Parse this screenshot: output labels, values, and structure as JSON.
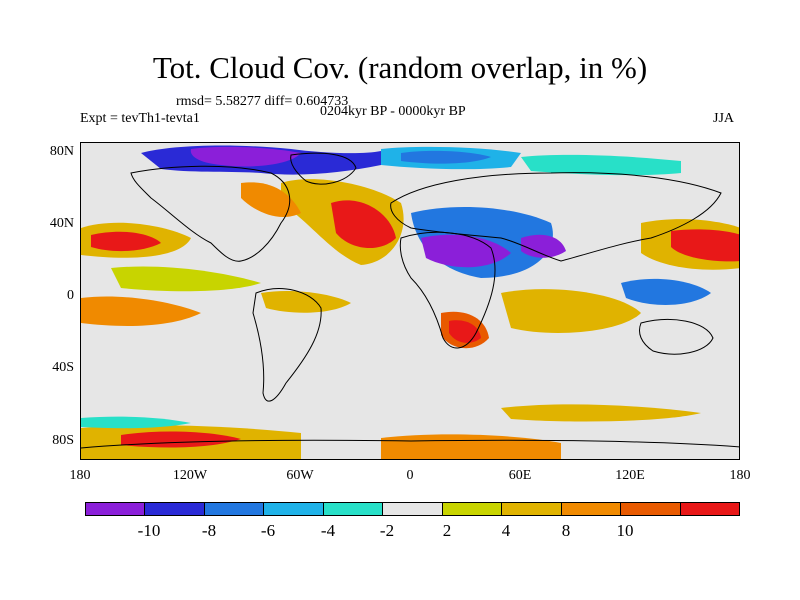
{
  "header": {
    "title": "Tot. Cloud Cov. (random overlap, in %)",
    "stats": "rmsd= 5.58277 diff= 0.604733",
    "expt": "Expt = tevTh1-tevta1",
    "period": "0204kyr BP - 0000kyr BP",
    "season": "JJA"
  },
  "map": {
    "lat_labels": [
      "80N",
      "40N",
      "0",
      "40S",
      "80S"
    ],
    "lon_labels": [
      "180",
      "120W",
      "60W",
      "0",
      "60E",
      "120E",
      "180"
    ],
    "background_color": "#e6e6e6",
    "coastline_color": "#000000"
  },
  "colorbar": {
    "colors": [
      "#8b1fd9",
      "#2a2ad6",
      "#2277e0",
      "#1fb2e8",
      "#28e0c8",
      "#e6e6e6",
      "#c8d400",
      "#e0b300",
      "#f08a00",
      "#e85a00",
      "#e81818"
    ],
    "labels": [
      "-10",
      "-8",
      "-6",
      "-4",
      "-2",
      "2",
      "4",
      "8",
      "10"
    ]
  }
}
